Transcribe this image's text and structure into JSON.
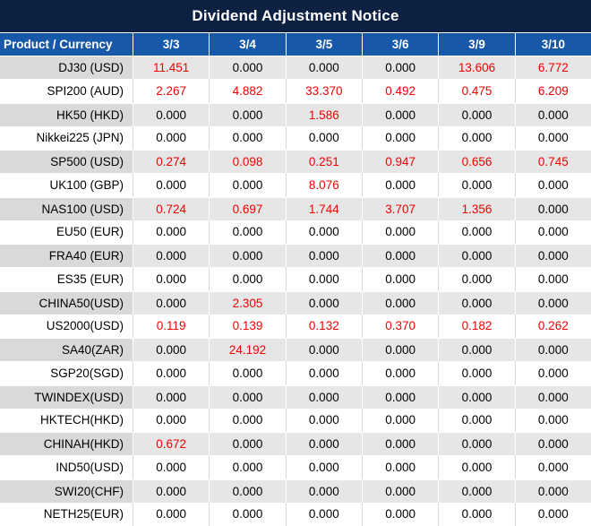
{
  "title": "Dividend Adjustment Notice",
  "table": {
    "header": {
      "product_label": "Product / Currency",
      "dates": [
        "3/3",
        "3/4",
        "3/5",
        "3/6",
        "3/9",
        "3/10"
      ]
    },
    "rows": [
      {
        "label": "DJ30 (USD)",
        "values": [
          "11.451",
          "0.000",
          "0.000",
          "0.000",
          "13.606",
          "6.772"
        ],
        "red": [
          true,
          false,
          false,
          false,
          true,
          true
        ]
      },
      {
        "label": "SPI200 (AUD)",
        "values": [
          "2.267",
          "4.882",
          "33.370",
          "0.492",
          "0.475",
          "6.209"
        ],
        "red": [
          true,
          true,
          true,
          true,
          true,
          true
        ]
      },
      {
        "label": "HK50 (HKD)",
        "values": [
          "0.000",
          "0.000",
          "1.586",
          "0.000",
          "0.000",
          "0.000"
        ],
        "red": [
          false,
          false,
          true,
          false,
          false,
          false
        ]
      },
      {
        "label": "Nikkei225 (JPN)",
        "values": [
          "0.000",
          "0.000",
          "0.000",
          "0.000",
          "0.000",
          "0.000"
        ],
        "red": [
          false,
          false,
          false,
          false,
          false,
          false
        ]
      },
      {
        "label": "SP500 (USD)",
        "values": [
          "0.274",
          "0.098",
          "0.251",
          "0.947",
          "0.656",
          "0.745"
        ],
        "red": [
          true,
          true,
          true,
          true,
          true,
          true
        ]
      },
      {
        "label": "UK100 (GBP)",
        "values": [
          "0.000",
          "0.000",
          "8.076",
          "0.000",
          "0.000",
          "0.000"
        ],
        "red": [
          false,
          false,
          true,
          false,
          false,
          false
        ]
      },
      {
        "label": "NAS100 (USD)",
        "values": [
          "0.724",
          "0.697",
          "1.744",
          "3.707",
          "1.356",
          "0.000"
        ],
        "red": [
          true,
          true,
          true,
          true,
          true,
          false
        ]
      },
      {
        "label": "EU50 (EUR)",
        "values": [
          "0.000",
          "0.000",
          "0.000",
          "0.000",
          "0.000",
          "0.000"
        ],
        "red": [
          false,
          false,
          false,
          false,
          false,
          false
        ]
      },
      {
        "label": "FRA40 (EUR)",
        "values": [
          "0.000",
          "0.000",
          "0.000",
          "0.000",
          "0.000",
          "0.000"
        ],
        "red": [
          false,
          false,
          false,
          false,
          false,
          false
        ]
      },
      {
        "label": "ES35 (EUR)",
        "values": [
          "0.000",
          "0.000",
          "0.000",
          "0.000",
          "0.000",
          "0.000"
        ],
        "red": [
          false,
          false,
          false,
          false,
          false,
          false
        ]
      },
      {
        "label": "CHINA50(USD)",
        "values": [
          "0.000",
          "2.305",
          "0.000",
          "0.000",
          "0.000",
          "0.000"
        ],
        "red": [
          false,
          true,
          false,
          false,
          false,
          false
        ]
      },
      {
        "label": "US2000(USD)",
        "values": [
          "0.119",
          "0.139",
          "0.132",
          "0.370",
          "0.182",
          "0.262"
        ],
        "red": [
          true,
          true,
          true,
          true,
          true,
          true
        ]
      },
      {
        "label": "SA40(ZAR)",
        "values": [
          "0.000",
          "24.192",
          "0.000",
          "0.000",
          "0.000",
          "0.000"
        ],
        "red": [
          false,
          true,
          false,
          false,
          false,
          false
        ]
      },
      {
        "label": "SGP20(SGD)",
        "values": [
          "0.000",
          "0.000",
          "0.000",
          "0.000",
          "0.000",
          "0.000"
        ],
        "red": [
          false,
          false,
          false,
          false,
          false,
          false
        ]
      },
      {
        "label": "TWINDEX(USD)",
        "values": [
          "0.000",
          "0.000",
          "0.000",
          "0.000",
          "0.000",
          "0.000"
        ],
        "red": [
          false,
          false,
          false,
          false,
          false,
          false
        ]
      },
      {
        "label": "HKTECH(HKD)",
        "values": [
          "0.000",
          "0.000",
          "0.000",
          "0.000",
          "0.000",
          "0.000"
        ],
        "red": [
          false,
          false,
          false,
          false,
          false,
          false
        ]
      },
      {
        "label": "CHINAH(HKD)",
        "values": [
          "0.672",
          "0.000",
          "0.000",
          "0.000",
          "0.000",
          "0.000"
        ],
        "red": [
          true,
          false,
          false,
          false,
          false,
          false
        ]
      },
      {
        "label": "IND50(USD)",
        "values": [
          "0.000",
          "0.000",
          "0.000",
          "0.000",
          "0.000",
          "0.000"
        ],
        "red": [
          false,
          false,
          false,
          false,
          false,
          false
        ]
      },
      {
        "label": "SWI20(CHF)",
        "values": [
          "0.000",
          "0.000",
          "0.000",
          "0.000",
          "0.000",
          "0.000"
        ],
        "red": [
          false,
          false,
          false,
          false,
          false,
          false
        ]
      },
      {
        "label": "NETH25(EUR)",
        "values": [
          "0.000",
          "0.000",
          "0.000",
          "0.000",
          "0.000",
          "0.000"
        ],
        "red": [
          false,
          false,
          false,
          false,
          false,
          false
        ]
      }
    ]
  },
  "colors": {
    "title_bar_bg": "#0d2143",
    "header_bg": "#1759a8",
    "alt_row_product_bg": "#d9d9d9",
    "alt_row_value_bg": "#e7e6e6",
    "separator": "#d9d9d9",
    "highlight_red": "#f20000",
    "text_dark": "#000000"
  }
}
